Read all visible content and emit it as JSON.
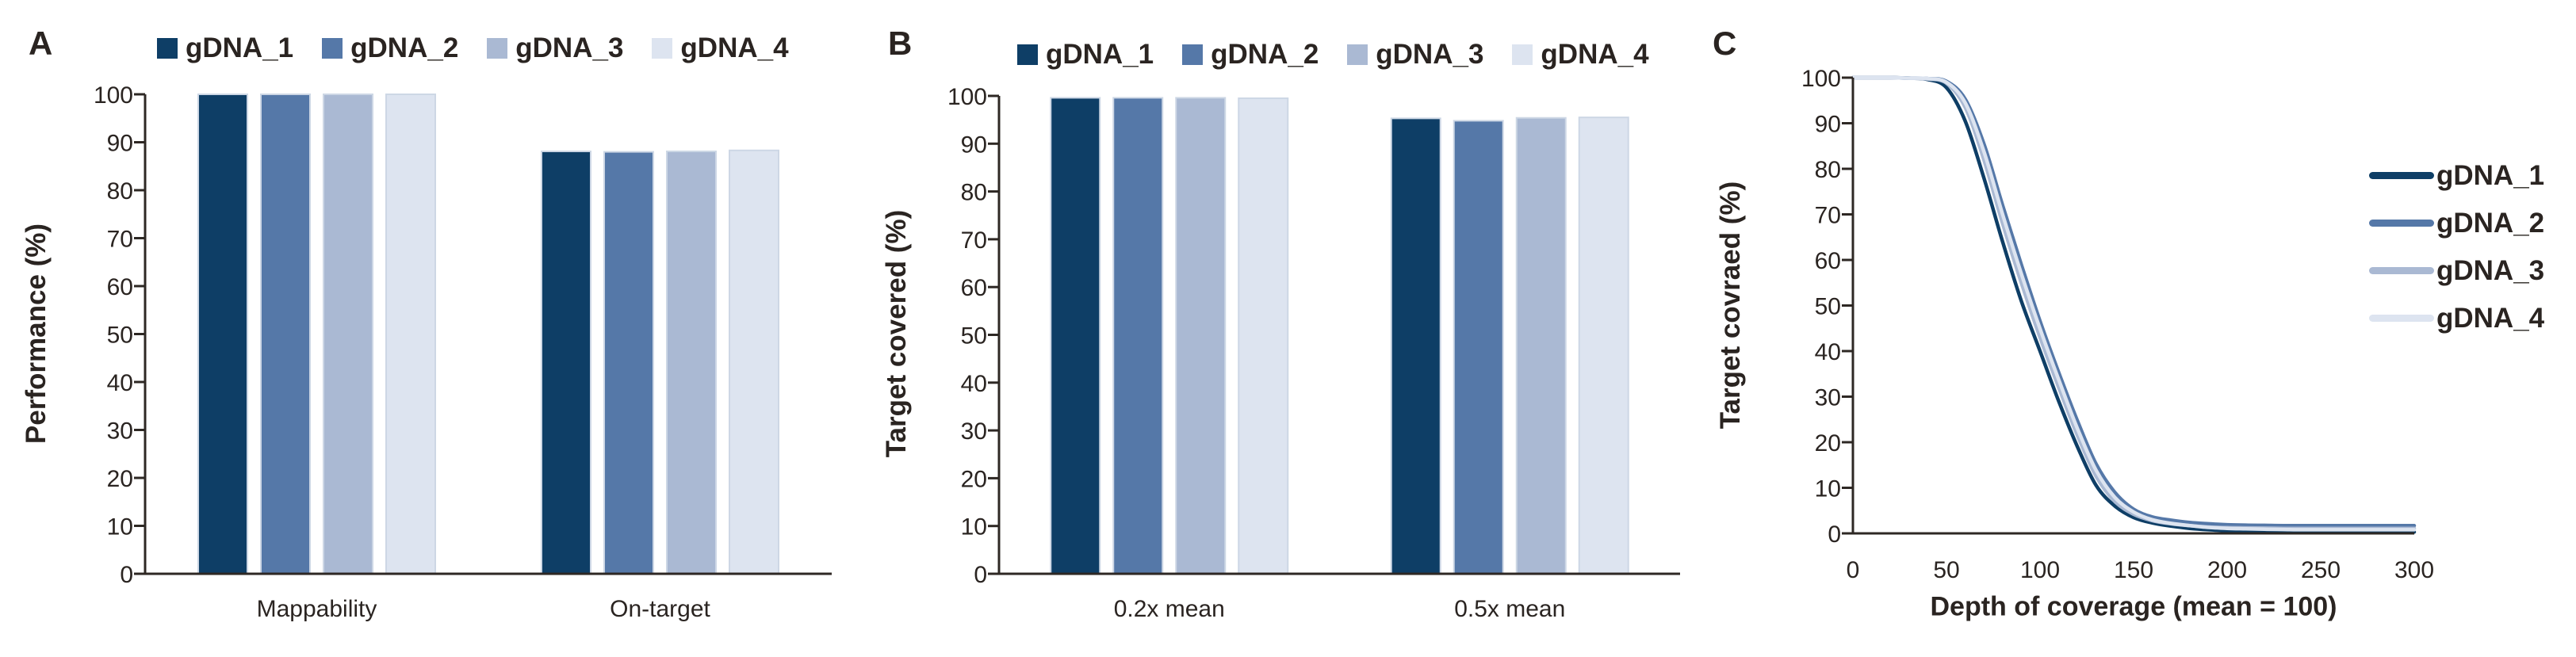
{
  "figure": {
    "background": "#ffffff",
    "axis_color": "#2e2824",
    "text_color": "#2a2421",
    "bar_border_color": "#cdd7e5",
    "series": [
      {
        "name": "gDNA_1",
        "color": "#0e3e66"
      },
      {
        "name": "gDNA_2",
        "color": "#5578a8"
      },
      {
        "name": "gDNA_3",
        "color": "#aab9d3"
      },
      {
        "name": "gDNA_4",
        "color": "#dde4f0"
      }
    ]
  },
  "panels": {
    "a": {
      "label": "A",
      "ylabel": "Performance (%)"
    },
    "b": {
      "label": "B",
      "ylabel": "Target covered (%)"
    },
    "c": {
      "label": "C",
      "ylabel": "Target covraed (%)",
      "xlabel": "Depth of coverage (mean = 100)"
    }
  },
  "chart_data": [
    {
      "id": "a",
      "type": "bar",
      "title": "",
      "ylabel": "Performance (%)",
      "categories": [
        "Mappability",
        "On-target"
      ],
      "series": [
        {
          "name": "gDNA_1",
          "values": [
            100,
            88.1
          ]
        },
        {
          "name": "gDNA_2",
          "values": [
            100,
            88.0
          ]
        },
        {
          "name": "gDNA_3",
          "values": [
            100,
            88.1
          ]
        },
        {
          "name": "gDNA_4",
          "values": [
            100,
            88.3
          ]
        }
      ],
      "ylim": [
        0,
        100
      ],
      "ytick_step": 10,
      "grid": false,
      "legend_position": "top"
    },
    {
      "id": "b",
      "type": "bar",
      "title": "",
      "ylabel": "Target covered (%)",
      "categories": [
        "0.2x mean",
        "0.5x mean"
      ],
      "series": [
        {
          "name": "gDNA_1",
          "values": [
            99.6,
            95.3
          ]
        },
        {
          "name": "gDNA_2",
          "values": [
            99.6,
            94.8
          ]
        },
        {
          "name": "gDNA_3",
          "values": [
            99.6,
            95.4
          ]
        },
        {
          "name": "gDNA_4",
          "values": [
            99.5,
            95.5
          ]
        }
      ],
      "ylim": [
        0,
        100
      ],
      "ytick_step": 10,
      "grid": false,
      "legend_position": "top"
    },
    {
      "id": "c",
      "type": "line",
      "title": "",
      "ylabel": "Target covraed (%)",
      "xlabel": "Depth of coverage (mean = 100)",
      "x": [
        0,
        10,
        20,
        30,
        40,
        50,
        60,
        70,
        80,
        90,
        100,
        110,
        120,
        130,
        140,
        150,
        160,
        170,
        180,
        190,
        200,
        210,
        220,
        230,
        240,
        250,
        260,
        270,
        280,
        290,
        300
      ],
      "series": [
        {
          "name": "gDNA_1",
          "values": [
            100,
            100,
            100,
            99.9,
            99.6,
            97.8,
            90.5,
            78,
            64,
            51,
            40,
            29,
            19,
            10.5,
            6,
            3.5,
            2.3,
            1.6,
            1.1,
            0.8,
            0.6,
            0.5,
            0.4,
            0.4,
            0.35,
            0.35,
            0.3,
            0.3,
            0.3,
            0.3,
            0.3
          ]
        },
        {
          "name": "gDNA_2",
          "values": [
            100,
            100,
            100,
            99.9,
            99.8,
            99.2,
            95.3,
            85.5,
            72,
            59,
            46.6,
            35.3,
            24.7,
            15.2,
            9,
            5.3,
            3.6,
            2.9,
            2.4,
            2.1,
            1.9,
            1.8,
            1.75,
            1.7,
            1.7,
            1.7,
            1.7,
            1.7,
            1.7,
            1.7,
            1.7
          ]
        },
        {
          "name": "gDNA_3",
          "values": [
            100,
            100,
            100,
            99.9,
            99.7,
            98.8,
            93.5,
            82,
            68,
            55,
            43,
            32,
            21.5,
            12.5,
            7,
            4.2,
            2.8,
            2.1,
            1.7,
            1.4,
            1.25,
            1.2,
            1.15,
            1.1,
            1.1,
            1.1,
            1.1,
            1.1,
            1.1,
            1.1,
            1.1
          ]
        },
        {
          "name": "gDNA_4",
          "values": [
            100,
            100,
            100,
            99.9,
            99.8,
            99,
            94.5,
            83.8,
            70,
            57,
            44.9,
            33.7,
            23,
            13.8,
            7.9,
            4.7,
            3,
            2.2,
            1.7,
            1.3,
            1.1,
            1,
            0.9,
            0.85,
            0.8,
            0.8,
            0.8,
            0.8,
            0.8,
            0.8,
            0.8
          ]
        }
      ],
      "ylim": [
        0,
        100
      ],
      "xlim": [
        0,
        300
      ],
      "xticks": [
        0,
        50,
        100,
        150,
        200,
        250,
        300
      ],
      "ytick_step": 10,
      "grid": false,
      "legend_position": "right"
    }
  ]
}
